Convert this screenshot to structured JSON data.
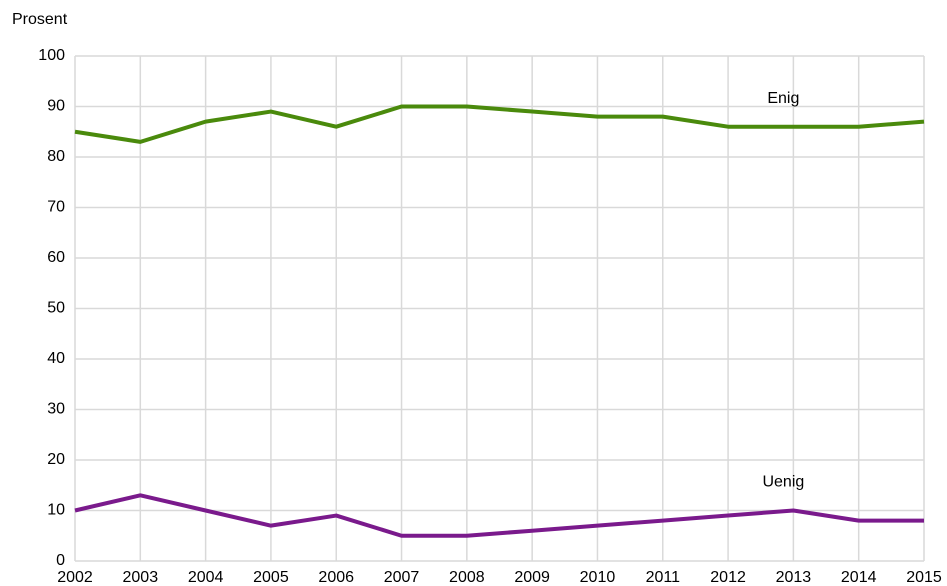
{
  "chart_data": {
    "type": "line",
    "y_label": "Prosent",
    "x": [
      2002,
      2003,
      2004,
      2005,
      2006,
      2007,
      2008,
      2009,
      2010,
      2011,
      2012,
      2013,
      2014,
      2015
    ],
    "xlim": [
      2002,
      2015
    ],
    "xticks": [
      2002,
      2003,
      2004,
      2005,
      2006,
      2007,
      2008,
      2009,
      2010,
      2011,
      2012,
      2013,
      2014,
      2015
    ],
    "ylim": [
      0,
      100
    ],
    "yticks": [
      0,
      10,
      20,
      30,
      40,
      50,
      60,
      70,
      80,
      90,
      100
    ],
    "grid": true,
    "series": [
      {
        "name": "Enig",
        "color": "#4a8a0c",
        "values": [
          85,
          83,
          87,
          89,
          86,
          90,
          90,
          89,
          88,
          88,
          86,
          86,
          86,
          87
        ]
      },
      {
        "name": "Uenig",
        "color": "#7a1a8c",
        "values": [
          10,
          13,
          10,
          7,
          9,
          5,
          5,
          6,
          7,
          8,
          9,
          10,
          8,
          8
        ]
      }
    ]
  }
}
